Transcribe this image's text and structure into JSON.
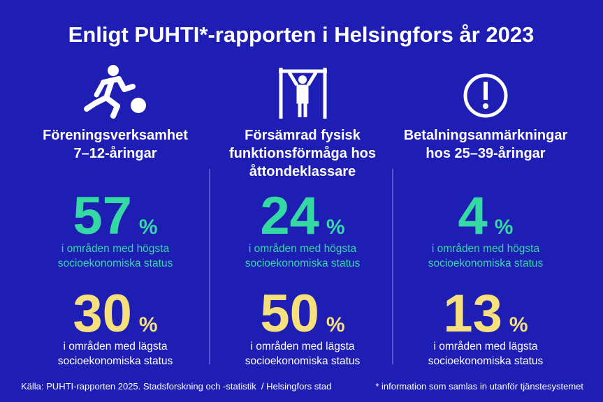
{
  "title": "Enligt PUHTI*-rapporten i Helsingfors år 2023",
  "columns": [
    {
      "heading": [
        "Föreningsverksamhet",
        "7–12-åringar"
      ],
      "high": {
        "value": "57",
        "unit": "%",
        "caption": [
          "i områden med högsta",
          "socioekonomiska status"
        ]
      },
      "low": {
        "value": "30",
        "unit": "%",
        "caption": [
          "i områden med lägsta",
          "socioekonomiska status"
        ]
      }
    },
    {
      "heading": [
        "Försämrad fysisk",
        "funktionsförmåga hos",
        "åttondeklassare"
      ],
      "high": {
        "value": "24",
        "unit": "%",
        "caption": [
          "i områden med högsta",
          "socioekonomiska status"
        ]
      },
      "low": {
        "value": "50",
        "unit": "%",
        "caption": [
          "i områden med lägsta",
          "socioekonomiska status"
        ]
      }
    },
    {
      "heading": [
        "Betalningsanmärkningar",
        "hos 25–39-åringar"
      ],
      "high": {
        "value": "4",
        "unit": "%",
        "caption": [
          "i områden med högsta",
          "socioekonomiska status"
        ]
      },
      "low": {
        "value": "13",
        "unit": "%",
        "caption": [
          "i områden med lägsta",
          "socioekonomiska status"
        ]
      }
    }
  ],
  "footer": {
    "source": "Källa: PUHTI-rapporten 2025. Stadsforskning och -statistik  / Helsingfors stad",
    "note": "* information som samlas in utanför tjänstesystemet"
  }
}
